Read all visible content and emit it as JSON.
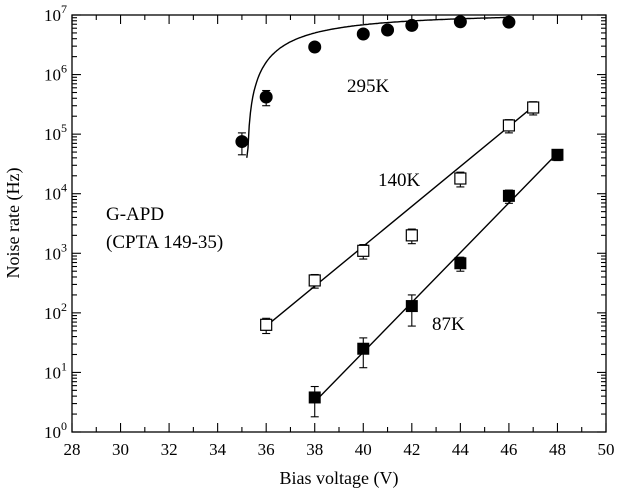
{
  "chart_data": {
    "type": "scatter",
    "title": "",
    "xlabel": "Bias voltage (V)",
    "ylabel": "Noise rate (Hz)",
    "xlim": [
      28,
      50
    ],
    "ylim": [
      1,
      10000000
    ],
    "yscale": "log",
    "grid": false,
    "x_ticks": [
      28,
      30,
      32,
      34,
      36,
      38,
      40,
      42,
      44,
      46,
      48,
      50
    ],
    "x_tick_labels": [
      "28",
      "30",
      "32",
      "34",
      "36",
      "38",
      "40",
      "42",
      "44",
      "46",
      "48",
      "50"
    ],
    "y_tick_exponents": [
      0,
      1,
      2,
      3,
      4,
      5,
      6,
      7
    ],
    "y_tick_base": "10",
    "annotations": {
      "device_line1": "G-APD",
      "device_line2": "(CPTA 149-35)"
    },
    "series": [
      {
        "label": "295K",
        "marker": "filled-circle",
        "x": [
          35,
          36,
          38,
          40,
          41,
          42,
          44,
          46
        ],
        "y": [
          75000,
          420000,
          2900000,
          4800000,
          5600000,
          6700000,
          7700000,
          7600000
        ],
        "err_low": [
          30000,
          120000,
          0,
          0,
          0,
          0,
          0,
          0
        ],
        "err_high": [
          30000,
          120000,
          0,
          0,
          0,
          0,
          0,
          0
        ],
        "fit": {
          "type": "saturating",
          "x_range": [
            35.2,
            46.0
          ]
        }
      },
      {
        "label": "140K",
        "marker": "open-square",
        "x": [
          36,
          38,
          40,
          42,
          44,
          46,
          47
        ],
        "y": [
          63,
          350,
          1100,
          2000,
          18000,
          140000,
          280000
        ],
        "err_low": [
          18,
          90,
          300,
          550,
          5000,
          35000,
          70000
        ],
        "err_high": [
          18,
          90,
          300,
          550,
          5000,
          35000,
          70000
        ],
        "fit": {
          "type": "exponential",
          "x": [
            36,
            47
          ],
          "y": [
            60,
            290000
          ]
        }
      },
      {
        "label": "87K",
        "marker": "filled-square",
        "x": [
          38,
          40,
          42,
          44,
          46,
          48
        ],
        "y": [
          3.8,
          25,
          130,
          680,
          9200,
          45000
        ],
        "err_low": [
          2.0,
          13,
          70,
          180,
          2300,
          9000
        ],
        "err_high": [
          2.0,
          13,
          70,
          180,
          2300,
          9000
        ],
        "fit": {
          "type": "exponential",
          "x": [
            38,
            48
          ],
          "y": [
            3.2,
            48000
          ]
        }
      }
    ]
  }
}
